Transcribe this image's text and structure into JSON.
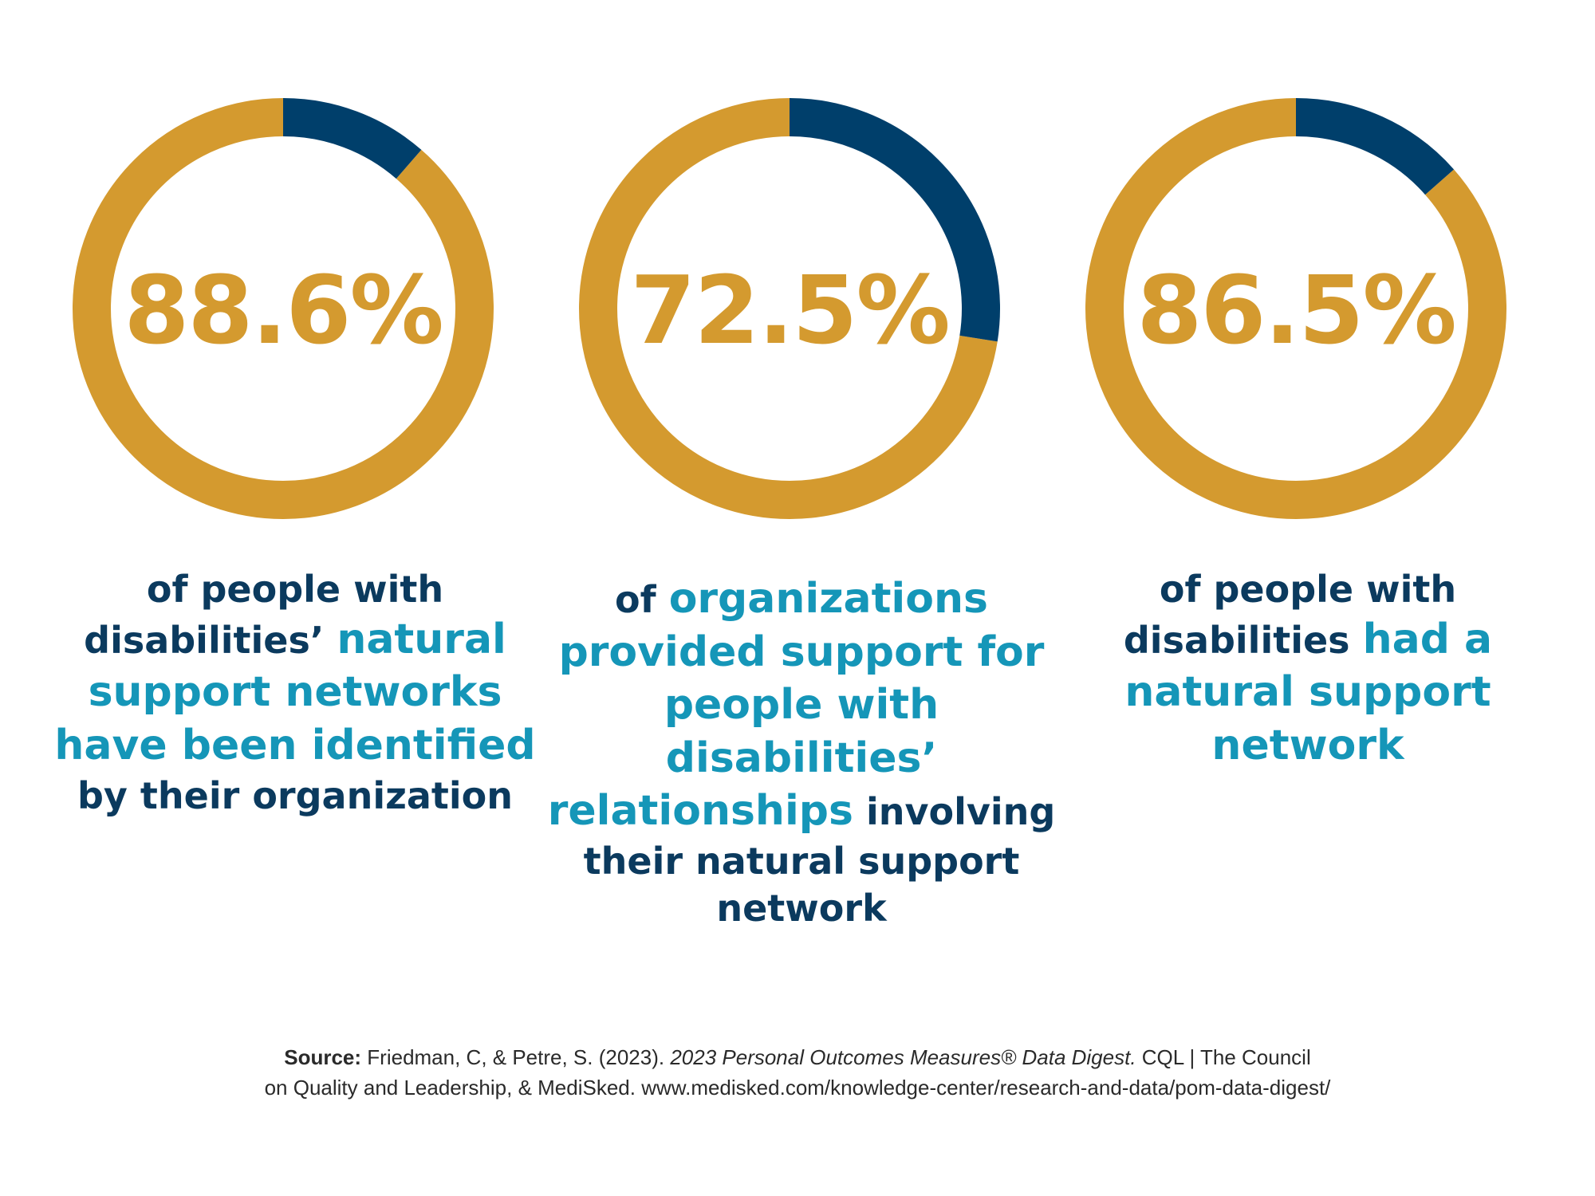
{
  "colors": {
    "ring": "#d49a2f",
    "segment": "#003f6b",
    "percent_text": "#d49a2f",
    "caption_dark": "#0b3a5e",
    "caption_highlight": "#1596b8"
  },
  "chart_data": [
    {
      "type": "pie",
      "value_label": "88.6%",
      "values": [
        88.6,
        11.4
      ],
      "caption": [
        {
          "text": "of people with disabilities’ ",
          "highlight": false
        },
        {
          "text": "natural support networks have been identified",
          "highlight": true
        },
        {
          "text": " by their organization",
          "highlight": false
        }
      ]
    },
    {
      "type": "pie",
      "value_label": "72.5%",
      "values": [
        72.5,
        27.5
      ],
      "caption": [
        {
          "text": "of ",
          "highlight": false
        },
        {
          "text": "organizations provided support for people with disabilities’ relationships",
          "highlight": true
        },
        {
          "text": " involving their natural support network",
          "highlight": false
        }
      ]
    },
    {
      "type": "pie",
      "value_label": "86.5%",
      "values": [
        86.5,
        13.5
      ],
      "caption": [
        {
          "text": "of people with disabilities ",
          "highlight": false
        },
        {
          "text": "had a natural support network",
          "highlight": true
        }
      ]
    }
  ],
  "source": {
    "label": "Source:",
    "pre": " Friedman, C, & Petre, S. (2023). ",
    "title": "2023 Personal Outcomes Measures® Data Digest.",
    "post": " CQL | The Council",
    "line2": "on Quality and Leadership, & MediSked. www.medisked.com/knowledge-center/research-and-data/pom-data-digest/"
  }
}
